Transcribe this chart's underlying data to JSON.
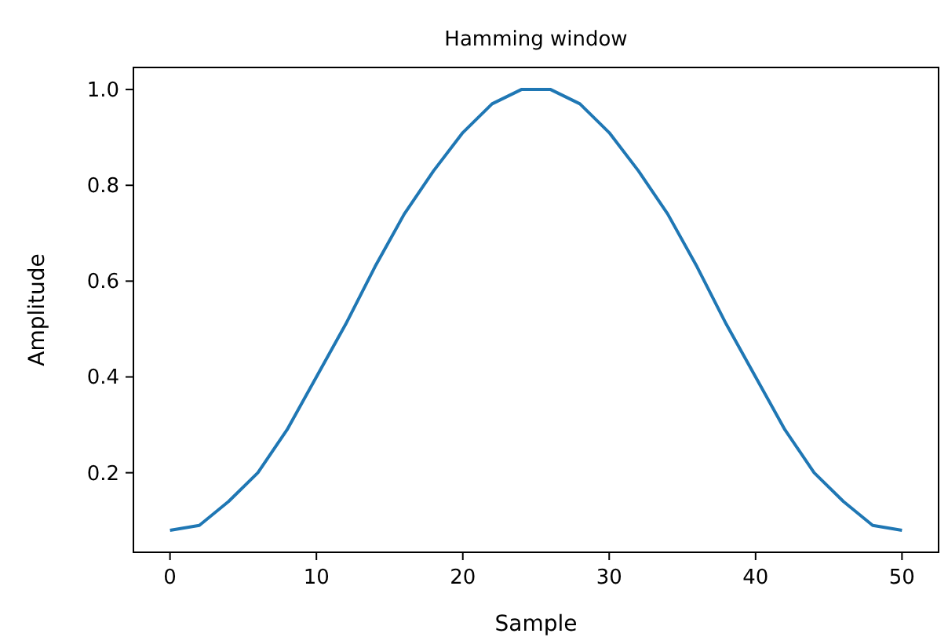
{
  "chart_data": {
    "type": "line",
    "title": "Hamming window",
    "xlabel": "Sample",
    "ylabel": "Amplitude",
    "x": [
      0,
      2,
      4,
      6,
      8,
      10,
      12,
      14,
      16,
      18,
      20,
      22,
      24,
      25,
      26,
      28,
      30,
      32,
      34,
      36,
      38,
      40,
      42,
      44,
      46,
      48,
      50
    ],
    "series": [
      {
        "color": "#1f77b4",
        "values": [
          0.08,
          0.09,
          0.14,
          0.2,
          0.29,
          0.4,
          0.51,
          0.63,
          0.74,
          0.83,
          0.91,
          0.97,
          1.0,
          1.0,
          1.0,
          0.97,
          0.91,
          0.83,
          0.74,
          0.63,
          0.51,
          0.4,
          0.29,
          0.2,
          0.14,
          0.09,
          0.08
        ]
      }
    ],
    "xlim": [
      -2.5,
      52.5
    ],
    "xticks": [
      0,
      10,
      20,
      30,
      40,
      50
    ],
    "ylim": [
      0.034,
      1.046
    ],
    "yticks": [
      {
        "value": 0.2,
        "label": "0.2"
      },
      {
        "value": 0.4,
        "label": "0.4"
      },
      {
        "value": 0.6,
        "label": "0.6"
      },
      {
        "value": 0.8,
        "label": "0.8"
      },
      {
        "value": 1.0,
        "label": "1.0"
      }
    ],
    "grid": false,
    "marker": "none",
    "line_style": "solid"
  }
}
